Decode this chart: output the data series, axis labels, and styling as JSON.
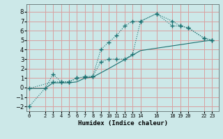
{
  "title": "",
  "xlabel": "Humidex (Indice chaleur)",
  "ylabel": "",
  "bg_color": "#cce8e8",
  "grid_color": "#d8a0a0",
  "line_color": "#1a7070",
  "ylim": [
    -2.5,
    8.8
  ],
  "xlim": [
    -0.3,
    23.8
  ],
  "yticks": [
    -2,
    -1,
    0,
    1,
    2,
    3,
    4,
    5,
    6,
    7,
    8
  ],
  "xtick_labels": [
    "0",
    "2",
    "3",
    "4",
    "5",
    "6",
    "7",
    "8",
    "9",
    "10",
    "11",
    "12",
    "13",
    "14",
    "16",
    "18",
    "19",
    "20",
    "22",
    "23"
  ],
  "xtick_vals": [
    0,
    2,
    3,
    4,
    5,
    6,
    7,
    8,
    9,
    10,
    11,
    12,
    13,
    14,
    16,
    18,
    19,
    20,
    22,
    23
  ],
  "line1_x": [
    0,
    2,
    3,
    4,
    5,
    6,
    7,
    8,
    9,
    10,
    11,
    12,
    13,
    14,
    16,
    18,
    19,
    20,
    22,
    23
  ],
  "line1_y": [
    -2.0,
    -0.1,
    1.4,
    0.6,
    0.6,
    1.0,
    1.1,
    1.2,
    4.0,
    4.8,
    5.5,
    6.5,
    7.0,
    7.0,
    7.8,
    7.0,
    6.5,
    6.3,
    5.2,
    5.0
  ],
  "line2_x": [
    0,
    3,
    4,
    5,
    6,
    7,
    8,
    9,
    10,
    11,
    12,
    13,
    14,
    16,
    18,
    19,
    20,
    22,
    23
  ],
  "line2_y": [
    -0.1,
    0.6,
    0.6,
    0.6,
    1.0,
    1.15,
    1.2,
    2.7,
    3.0,
    3.0,
    3.0,
    3.5,
    7.0,
    7.8,
    6.5,
    6.5,
    6.3,
    5.2,
    5.0
  ],
  "line3_x": [
    0,
    2,
    3,
    4,
    5,
    6,
    7,
    8,
    10,
    14,
    18,
    22,
    23
  ],
  "line3_y": [
    -0.1,
    -0.1,
    0.5,
    0.5,
    0.5,
    0.6,
    1.0,
    1.1,
    2.0,
    3.9,
    4.4,
    4.9,
    5.0
  ]
}
